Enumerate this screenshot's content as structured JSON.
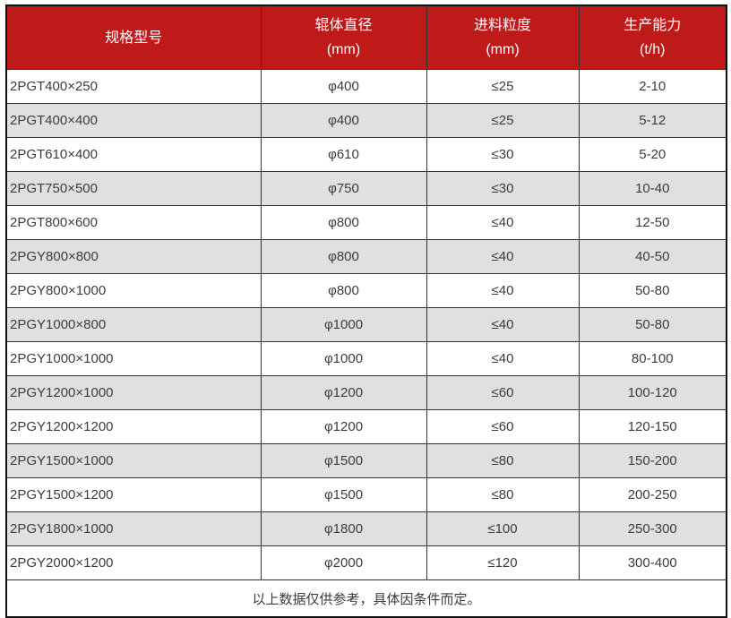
{
  "table": {
    "accent_color": "#be1a1a",
    "stripe_color": "#e0e0e0",
    "header": {
      "col1": "规格型号",
      "col2_line1": "辊体直径",
      "col2_line2": "(mm)",
      "col3_line1": "进料粒度",
      "col3_line2": "(mm)",
      "col4_line1": "生产能力",
      "col4_line2": "(t/h)"
    },
    "rows": [
      [
        "2PGT400×250",
        "φ400",
        "≤25",
        "2-10"
      ],
      [
        "2PGT400×400",
        "φ400",
        "≤25",
        "5-12"
      ],
      [
        "2PGT610×400",
        "φ610",
        "≤30",
        "5-20"
      ],
      [
        "2PGT750×500",
        "φ750",
        "≤30",
        "10-40"
      ],
      [
        "2PGT800×600",
        "φ800",
        "≤40",
        "12-50"
      ],
      [
        "2PGY800×800",
        "φ800",
        "≤40",
        "40-50"
      ],
      [
        "2PGY800×1000",
        "φ800",
        "≤40",
        "50-80"
      ],
      [
        "2PGY1000×800",
        "φ1000",
        "≤40",
        "50-80"
      ],
      [
        "2PGY1000×1000",
        "φ1000",
        "≤40",
        "80-100"
      ],
      [
        "2PGY1200×1000",
        "φ1200",
        "≤60",
        "100-120"
      ],
      [
        "2PGY1200×1200",
        "φ1200",
        "≤60",
        "120-150"
      ],
      [
        "2PGY1500×1000",
        "φ1500",
        "≤80",
        "150-200"
      ],
      [
        "2PGY1500×1200",
        "φ1500",
        "≤80",
        "200-250"
      ],
      [
        "2PGY1800×1000",
        "φ1800",
        "≤100",
        "250-300"
      ],
      [
        "2PGY2000×1200",
        "φ2000",
        "≤120",
        "300-400"
      ]
    ],
    "footer": "以上数据仅供参考，具体因条件而定。"
  }
}
